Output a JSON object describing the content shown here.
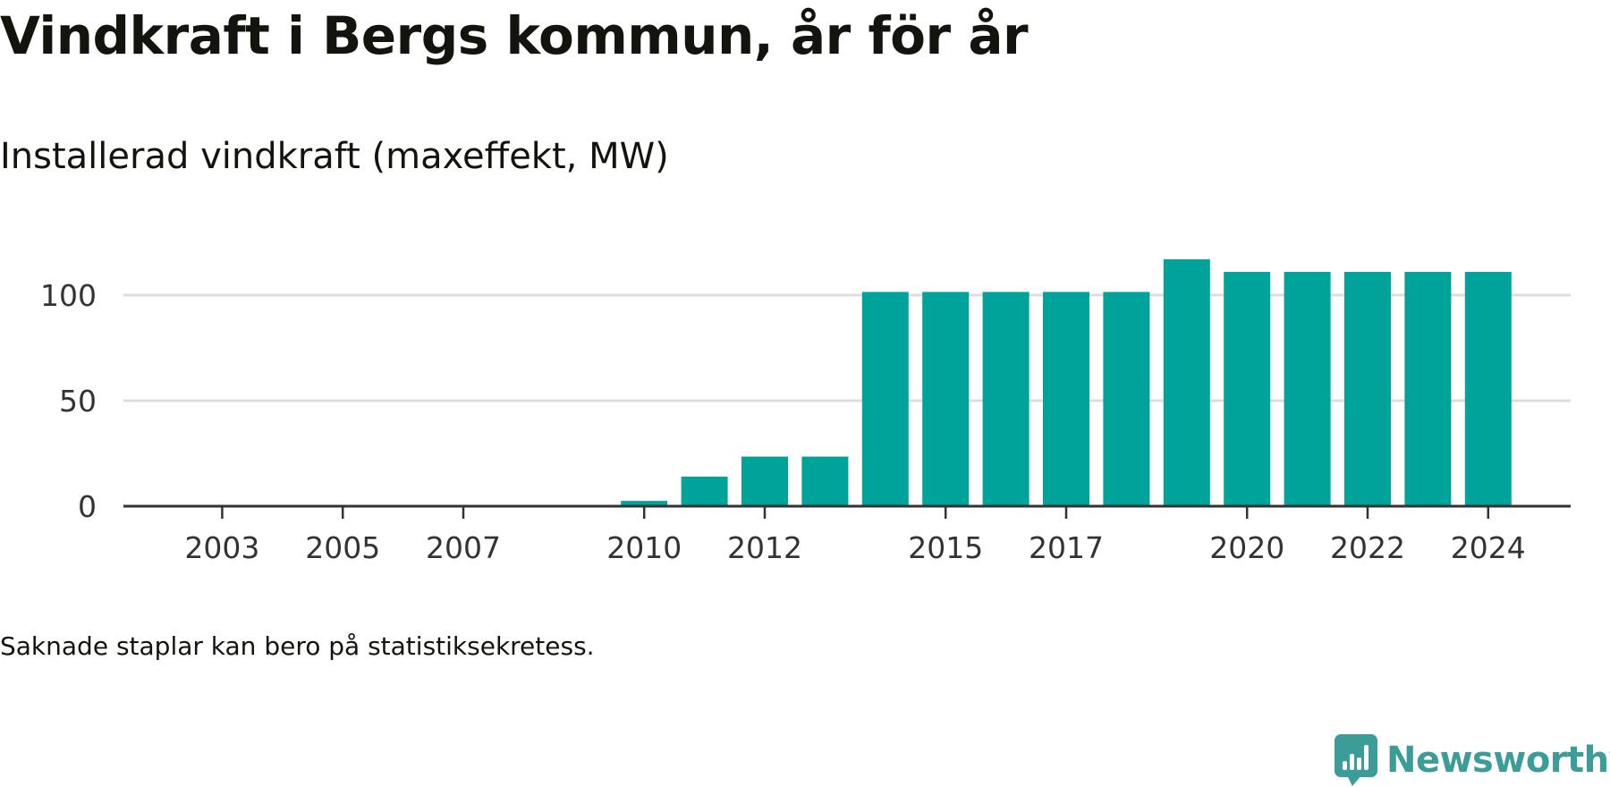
{
  "title": "Vindkraft i Bergs kommun, år för år",
  "subtitle": "Installerad vindkraft (maxeffekt, MW)",
  "note": "Saknade staplar kan bero på statistiksekretess.",
  "brand": {
    "name": "Newsworthy",
    "icon": "newsworthy-logo-icon",
    "color": "#3c9d98"
  },
  "chart_data": {
    "type": "bar",
    "x": [
      2002,
      2003,
      2004,
      2005,
      2006,
      2007,
      2008,
      2009,
      2010,
      2011,
      2012,
      2013,
      2014,
      2015,
      2016,
      2017,
      2018,
      2019,
      2020,
      2021,
      2022,
      2023,
      2024
    ],
    "values": [
      0,
      0,
      0,
      0,
      0,
      0,
      0,
      0,
      2.5,
      14,
      23.5,
      23.5,
      101.5,
      101.5,
      101.5,
      101.5,
      101.5,
      117,
      111,
      111,
      111,
      111,
      111
    ],
    "x_tick_labels": [
      "2003",
      "2005",
      "2007",
      "2010",
      "2012",
      "2015",
      "2017",
      "2020",
      "2022",
      "2024"
    ],
    "y_ticks": [
      0,
      50,
      100
    ],
    "ylim": [
      0,
      120
    ],
    "xlabel": "",
    "ylabel": "",
    "grid": true,
    "bar_color": "#00a39a",
    "grid_color": "#dddddd",
    "axis_color": "#333333"
  }
}
